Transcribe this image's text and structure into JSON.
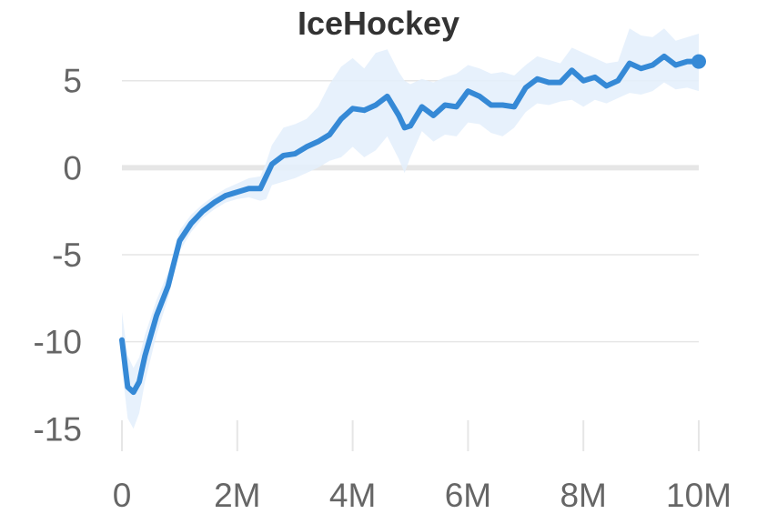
{
  "chart_data": {
    "type": "line",
    "title": "IceHockey",
    "xlabel": "",
    "ylabel": "",
    "xlim": [
      0,
      10000000
    ],
    "ylim": [
      -16.5,
      6.5
    ],
    "x_ticks": [
      0,
      2000000,
      4000000,
      6000000,
      8000000,
      10000000
    ],
    "x_tick_labels": [
      "0",
      "2M",
      "4M",
      "6M",
      "8M",
      "10M"
    ],
    "y_ticks": [
      5,
      0,
      -5,
      -10,
      -15
    ],
    "y_tick_labels": [
      "5",
      "0",
      "-5",
      "-10",
      "-15"
    ],
    "grid": true,
    "legend": "none",
    "colors": {
      "line": "#3589d6",
      "band": "#e3eefb"
    },
    "series": [
      {
        "x": [
          0,
          100000,
          200000,
          300000,
          400000,
          600000,
          800000,
          1000000,
          1200000,
          1400000,
          1600000,
          1800000,
          2000000,
          2200000,
          2400000,
          2500000,
          2600000,
          2800000,
          3000000,
          3200000,
          3400000,
          3600000,
          3800000,
          4000000,
          4200000,
          4400000,
          4600000,
          4800000,
          4900000,
          5000000,
          5200000,
          5400000,
          5600000,
          5800000,
          6000000,
          6200000,
          6400000,
          6600000,
          6800000,
          7000000,
          7200000,
          7400000,
          7600000,
          7800000,
          8000000,
          8200000,
          8400000,
          8600000,
          8800000,
          9000000,
          9200000,
          9400000,
          9600000,
          9800000,
          10000000
        ],
        "y": [
          -9.9,
          -12.6,
          -12.9,
          -12.3,
          -10.8,
          -8.5,
          -6.8,
          -4.2,
          -3.2,
          -2.5,
          -2.0,
          -1.6,
          -1.4,
          -1.2,
          -1.2,
          -0.5,
          0.2,
          0.7,
          0.8,
          1.2,
          1.5,
          1.9,
          2.8,
          3.4,
          3.3,
          3.6,
          4.1,
          3.0,
          2.3,
          2.4,
          3.5,
          3.0,
          3.6,
          3.5,
          4.4,
          4.1,
          3.6,
          3.6,
          3.5,
          4.6,
          5.1,
          4.9,
          4.9,
          5.6,
          5.0,
          5.2,
          4.7,
          5.0,
          6.0,
          5.7,
          5.9,
          6.4,
          5.9,
          6.1,
          6.1
        ],
        "upper": [
          -8.3,
          -10.8,
          -11.5,
          -10.9,
          -9.6,
          -7.6,
          -6.0,
          -3.6,
          -2.7,
          -2.1,
          -1.6,
          -1.2,
          -0.9,
          -0.6,
          -0.5,
          0.3,
          1.3,
          2.3,
          2.5,
          2.8,
          3.5,
          4.8,
          5.8,
          6.3,
          5.7,
          6.6,
          6.8,
          5.5,
          5.0,
          4.8,
          5.1,
          4.9,
          5.2,
          5.4,
          5.9,
          5.7,
          5.4,
          5.5,
          5.3,
          5.9,
          6.4,
          6.2,
          6.0,
          6.9,
          6.6,
          6.3,
          6.0,
          6.1,
          8.0,
          7.6,
          7.5,
          8.0,
          7.3,
          7.5,
          7.7
        ],
        "lower": [
          -11.5,
          -14.4,
          -15.0,
          -14.1,
          -12.3,
          -9.6,
          -7.5,
          -4.8,
          -3.7,
          -2.9,
          -2.4,
          -2.0,
          -1.8,
          -1.7,
          -1.9,
          -1.8,
          -1.0,
          -0.8,
          -0.6,
          -0.3,
          0.0,
          0.4,
          0.6,
          1.2,
          0.6,
          1.0,
          1.8,
          0.5,
          -0.3,
          0.6,
          2.1,
          1.5,
          1.9,
          1.8,
          2.6,
          2.5,
          2.0,
          1.8,
          2.3,
          3.2,
          3.7,
          3.6,
          3.8,
          3.9,
          3.5,
          3.9,
          3.7,
          4.0,
          4.3,
          4.2,
          4.4,
          4.9,
          4.5,
          4.6,
          4.4
        ]
      }
    ]
  }
}
